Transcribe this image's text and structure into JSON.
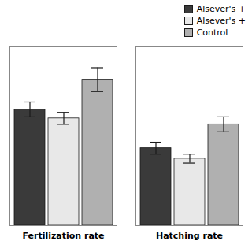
{
  "chart_data": {
    "type": "bar",
    "categories": [
      "Fertilization rate",
      "Hatching rate"
    ],
    "series": [
      {
        "name": "Alsever's +",
        "color": "#3a3a3a",
        "values": [
          78,
          52
        ],
        "errors": [
          5,
          4
        ]
      },
      {
        "name": "Alsever's +",
        "color": "#e8e8e8",
        "values": [
          72,
          45
        ],
        "errors": [
          4,
          3
        ]
      },
      {
        "name": "Control",
        "color": "#b0b0b0",
        "values": [
          98,
          68
        ],
        "errors": [
          8,
          5
        ]
      }
    ],
    "ylim": [
      0,
      120
    ],
    "tick_labels": "x",
    "legend": "upper right"
  }
}
